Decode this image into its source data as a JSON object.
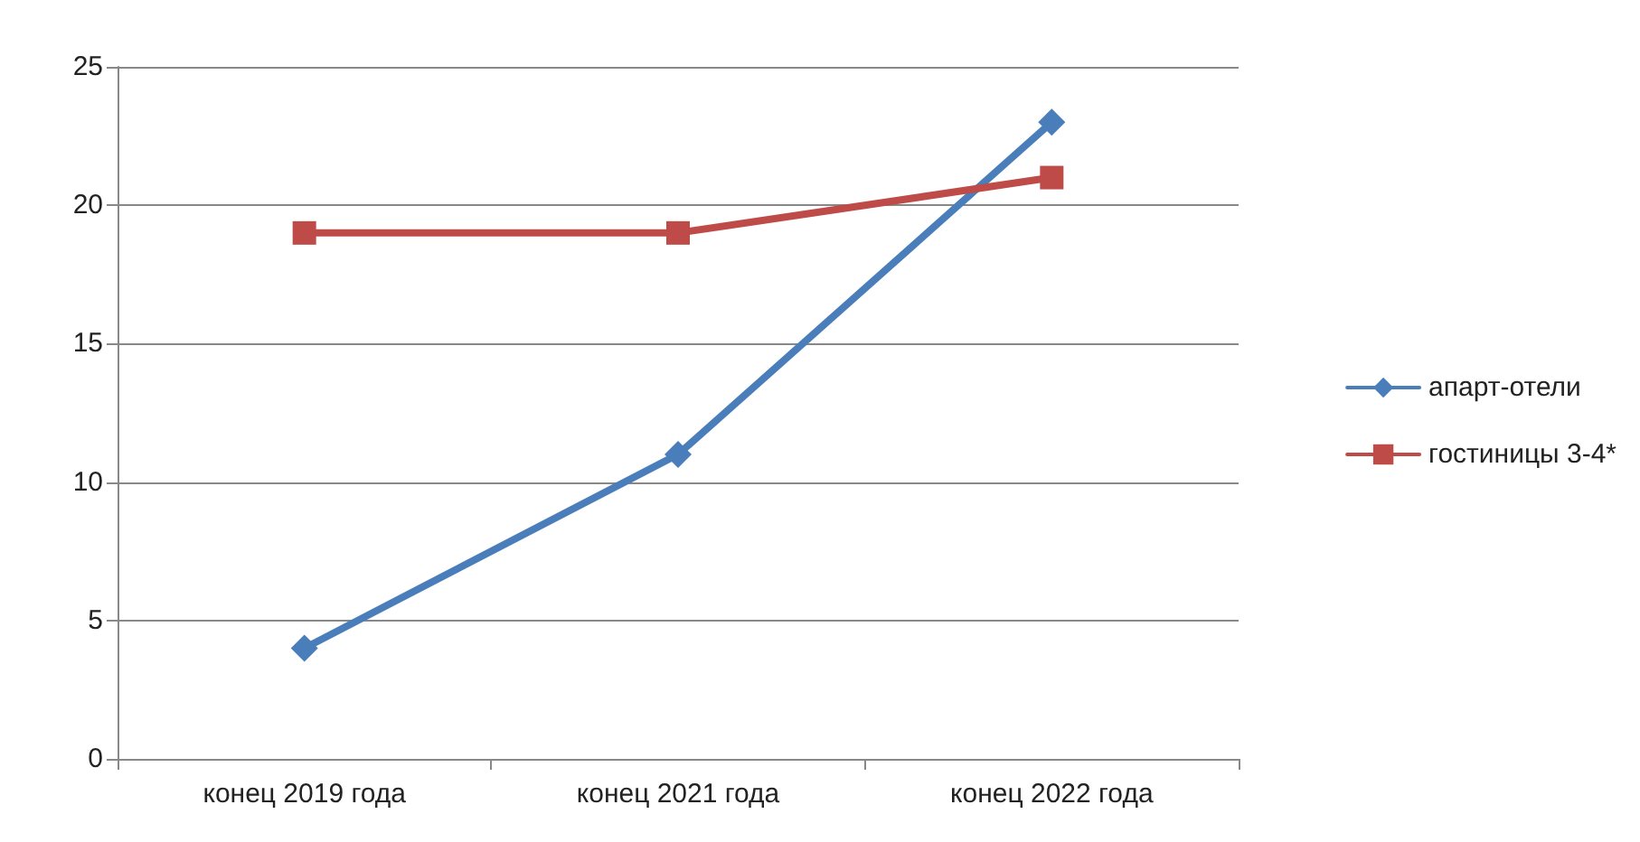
{
  "chart_data": {
    "type": "line",
    "categories": [
      "конец 2019 года",
      "конец 2021 года",
      "конец 2022 года"
    ],
    "series": [
      {
        "name": "апарт-отели",
        "color": "#4a7ebb",
        "marker": "diamond",
        "values": [
          4,
          11,
          23
        ]
      },
      {
        "name": "гостиницы 3-4*",
        "color": "#be4b48",
        "marker": "square",
        "values": [
          19,
          19,
          21
        ]
      }
    ],
    "ylim": [
      0,
      25
    ],
    "yticks": [
      0,
      5,
      10,
      15,
      20,
      25
    ],
    "grid": "y",
    "legend": "right"
  }
}
